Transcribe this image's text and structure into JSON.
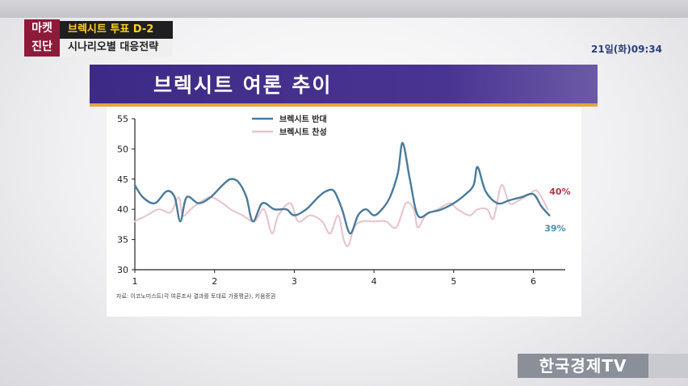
{
  "header": {
    "badge_line1": "마켓",
    "badge_line2": "진단",
    "headline": "브렉시트 투표 D-2",
    "subheadline": "시나리오별 대응전략",
    "clock": "21일(화)09:34"
  },
  "banner": {
    "title": "브렉시트 여론 추이"
  },
  "broadcaster": {
    "logo": "한국경제TV"
  },
  "chart_data": {
    "type": "line",
    "title": "",
    "xlabel": "",
    "ylabel": "",
    "xlim": [
      1,
      6.4
    ],
    "ylim": [
      30,
      55
    ],
    "x_ticks": [
      "1",
      "2",
      "3",
      "4",
      "5",
      "6"
    ],
    "y_ticks": [
      "30",
      "35",
      "40",
      "45",
      "50",
      "55"
    ],
    "grid": false,
    "legend_position": "top-center",
    "source": "자료: 이코노미스트(각 여론조사 결과를 토대로 가중평균), 키움증권",
    "series": [
      {
        "name": "브렉시트 반대",
        "color": "#4a7a9b",
        "end_label": "39%",
        "x": [
          1,
          1.1,
          1.25,
          1.4,
          1.5,
          1.57,
          1.65,
          1.8,
          1.95,
          2.1,
          2.2,
          2.3,
          2.4,
          2.48,
          2.6,
          2.75,
          2.9,
          3.0,
          3.15,
          3.3,
          3.4,
          3.5,
          3.6,
          3.7,
          3.8,
          3.9,
          4.0,
          4.1,
          4.2,
          4.3,
          4.36,
          4.45,
          4.55,
          4.7,
          4.85,
          5.0,
          5.15,
          5.25,
          5.3,
          5.4,
          5.55,
          5.7,
          5.85,
          6.0,
          6.1,
          6.2
        ],
        "values": [
          44,
          42,
          41,
          43,
          42,
          38,
          42,
          41,
          42,
          44,
          45,
          44.5,
          42,
          38,
          41,
          40,
          40,
          39,
          40,
          42,
          43,
          43,
          40,
          36,
          39,
          40,
          39,
          40,
          42,
          46,
          51,
          45,
          39,
          39.5,
          40,
          41,
          42.5,
          44,
          47,
          43,
          41,
          41.5,
          42,
          42.5,
          40.5,
          39
        ]
      },
      {
        "name": "브렉시트 찬성",
        "color": "#e8c6cf",
        "end_label": "40%",
        "x": [
          1,
          1.15,
          1.3,
          1.45,
          1.55,
          1.6,
          1.7,
          1.8,
          1.95,
          2.1,
          2.2,
          2.35,
          2.5,
          2.62,
          2.72,
          2.8,
          2.95,
          3.05,
          3.2,
          3.35,
          3.45,
          3.55,
          3.62,
          3.68,
          3.75,
          3.85,
          4.0,
          4.15,
          4.28,
          4.4,
          4.5,
          4.55,
          4.65,
          4.8,
          4.95,
          5.05,
          5.2,
          5.3,
          5.42,
          5.5,
          5.6,
          5.7,
          5.82,
          5.95,
          6.05,
          6.18
        ],
        "values": [
          38,
          39,
          40,
          39.5,
          42,
          39,
          40,
          41,
          42,
          41,
          40,
          39,
          38,
          40,
          36,
          39,
          41,
          38,
          39,
          38,
          36,
          39,
          35,
          34,
          37,
          38,
          38,
          38,
          37,
          41,
          40,
          37,
          39,
          40,
          41,
          40,
          39,
          40,
          40,
          38.5,
          44,
          41,
          41.5,
          42.5,
          43,
          40
        ]
      }
    ]
  }
}
